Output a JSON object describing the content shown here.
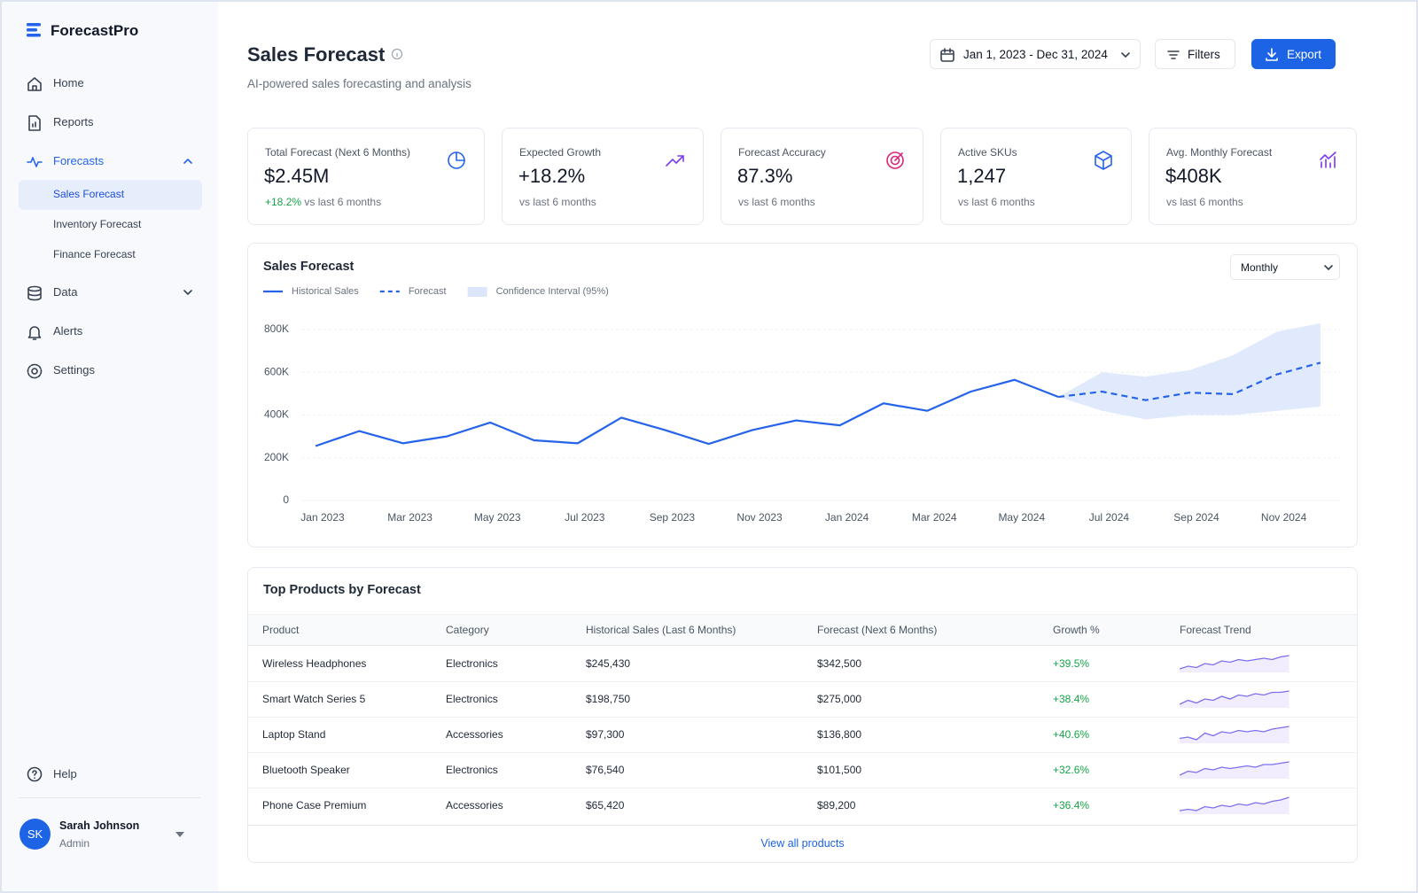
{
  "sidebar": {
    "brand": "ForecastPro",
    "nav": [
      {
        "label": "Home"
      },
      {
        "label": "Reports"
      },
      {
        "label": "Forecasts",
        "children": [
          "Sales Forecast",
          "Inventory Forecast",
          "Finance Forecast"
        ]
      },
      {
        "label": "Data"
      },
      {
        "label": "Alerts"
      },
      {
        "label": "Settings"
      }
    ],
    "help": "Help",
    "user": {
      "initials": "SK",
      "name": "Sarah Johnson",
      "role": "Admin"
    }
  },
  "header": {
    "title": "Sales Forecast",
    "subtitle": "AI-powered sales forecasting and analysis",
    "date_range": "Jan 1, 2023 - Dec 31, 2024",
    "filters": "Filters",
    "export": "Export"
  },
  "kpis": [
    {
      "label": "Total Forecast (Next 6 Months)",
      "value": "$2.45M",
      "change": "+18.2%",
      "note": "vs last 6 months"
    },
    {
      "label": "Expected Growth",
      "value": "+18.2%",
      "note": "vs last 6 months"
    },
    {
      "label": "Forecast Accuracy",
      "value": "87.3%",
      "note": "vs last 6 months"
    },
    {
      "label": "Active SKUs",
      "value": "1,247",
      "note": "vs last 6 months"
    },
    {
      "label": "Avg. Monthly Forecast",
      "value": "$408K",
      "note": "vs last 6 months"
    }
  ],
  "chart_data": {
    "type": "line",
    "title": "Sales Forecast",
    "period": "Monthly",
    "categories": [
      "Jan 2023",
      null,
      "Mar 2023",
      null,
      "May 2023",
      null,
      "Jul 2023",
      null,
      "Sep 2023",
      null,
      "Nov 2023",
      null,
      "Jan 2024",
      null,
      "Mar 2024",
      null,
      "May 2024",
      null,
      "Jul 2024",
      null,
      "Sep 2024",
      null,
      "Nov 2024",
      null
    ],
    "series": [
      {
        "name": "Historical Sales",
        "color": "#2563eb",
        "style": "solid",
        "values": [
          255000,
          325000,
          268000,
          300000,
          365000,
          282000,
          268000,
          388000,
          330000,
          265000,
          330000,
          375000,
          352000,
          455000,
          420000,
          510000,
          565000,
          485000,
          null,
          null,
          null,
          null,
          null,
          null
        ]
      },
      {
        "name": "Forecast",
        "color": "#2563eb",
        "style": "dashed",
        "values": [
          null,
          null,
          null,
          null,
          null,
          null,
          null,
          null,
          null,
          null,
          null,
          null,
          null,
          null,
          null,
          null,
          null,
          485000,
          510000,
          470000,
          505000,
          498000,
          590000,
          645000
        ]
      }
    ],
    "band": {
      "name": "Confidence Interval (95%)",
      "color": "#dbe6fb",
      "lower": [
        null,
        null,
        null,
        null,
        null,
        null,
        null,
        null,
        null,
        null,
        null,
        null,
        null,
        null,
        null,
        null,
        null,
        485000,
        420000,
        380000,
        400000,
        400000,
        420000,
        440000
      ],
      "upper": [
        null,
        null,
        null,
        null,
        null,
        null,
        null,
        null,
        null,
        null,
        null,
        null,
        null,
        null,
        null,
        null,
        null,
        485000,
        600000,
        580000,
        610000,
        680000,
        790000,
        830000
      ]
    },
    "ylim": [
      0,
      850000
    ],
    "yticks": [
      0,
      {
        "value": 200000,
        "label": "200K"
      },
      {
        "value": 400000,
        "label": "400K"
      },
      {
        "value": 600000,
        "label": "600K"
      },
      {
        "value": 800000,
        "label": "800K"
      }
    ],
    "grid": true
  },
  "table": {
    "title": "Top Products by Forecast",
    "columns": [
      "Product",
      "Category",
      "Historical Sales (Last 6 Months)",
      "Forecast (Next 6 Months)",
      "Growth %",
      "Forecast Trend"
    ],
    "rows": [
      [
        "Wireless Headphones",
        "Electronics",
        "$245,430",
        "$342,500",
        "+39.5%"
      ],
      [
        "Smart Watch Series 5",
        "Electronics",
        "$198,750",
        "$275,000",
        "+38.4%"
      ],
      [
        "Laptop Stand",
        "Accessories",
        "$97,300",
        "$136,800",
        "+40.6%"
      ],
      [
        "Bluetooth Speaker",
        "Electronics",
        "$76,540",
        "$101,500",
        "+32.6%"
      ],
      [
        "Phone Case Premium",
        "Accessories",
        "$65,420",
        "$89,200",
        "+36.4%"
      ]
    ],
    "footer_link": "View all products"
  }
}
